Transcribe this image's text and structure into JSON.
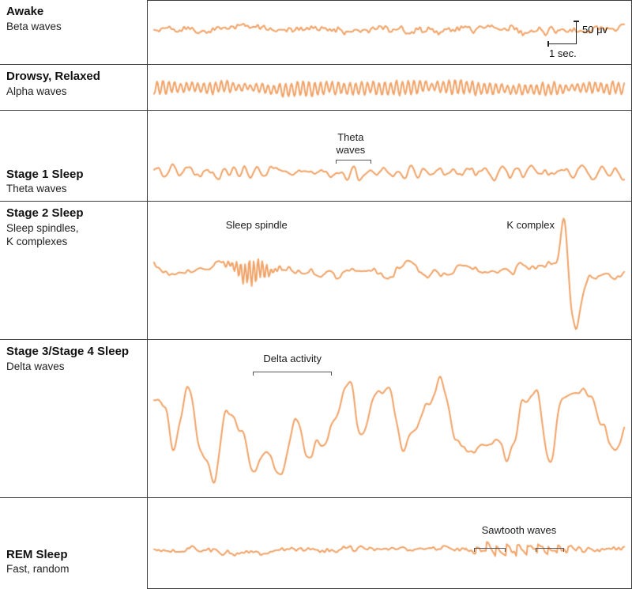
{
  "scale": {
    "amplitude": "50 μv",
    "time": "1 sec."
  },
  "colors": {
    "wave": "#f0a266",
    "line": "#3c3c3c",
    "text": "#1b1b1b"
  },
  "rows": [
    {
      "label": "Awake",
      "sublabel": "Beta waves",
      "wave": {
        "type": "beta",
        "description": "fast, low amplitude"
      },
      "annotations": [],
      "brackets": []
    },
    {
      "label": "Drowsy, Relaxed",
      "sublabel": "Alpha waves",
      "wave": {
        "type": "alpha",
        "description": "rhythmic, moderate amplitude"
      },
      "annotations": [],
      "brackets": []
    },
    {
      "label": "Stage 1 Sleep",
      "sublabel": "Theta waves",
      "wave": {
        "type": "theta",
        "description": "slower, mixed amplitude"
      },
      "annotations": [
        {
          "text": "Theta\nwaves",
          "x": 0.42,
          "y": 26
        }
      ],
      "brackets": [
        {
          "x": 0.389,
          "y": 62,
          "w": 0.073
        }
      ]
    },
    {
      "label": "Stage 2 Sleep",
      "sublabel": "Sleep spindles,\nK complexes",
      "wave": {
        "type": "stage2",
        "description": "mixed with sleep spindle burst and K complex spike"
      },
      "annotations": [
        {
          "text": "Sleep spindle",
          "x": 0.226,
          "y": 22
        },
        {
          "text": "K complex",
          "x": 0.791,
          "y": 22
        }
      ],
      "brackets": []
    },
    {
      "label": "Stage 3/Stage 4 Sleep",
      "sublabel": "Delta waves",
      "wave": {
        "type": "delta",
        "description": "large slow waves"
      },
      "annotations": [
        {
          "text": "Delta activity",
          "x": 0.3,
          "y": 16
        }
      ],
      "brackets": [
        {
          "x": 0.218,
          "y": 40,
          "w": 0.163
        }
      ]
    },
    {
      "label": "REM Sleep",
      "sublabel": "Fast, random",
      "wave": {
        "type": "rem",
        "description": "fast random with sawtooth waves"
      },
      "annotations": [
        {
          "text": "Sawtooth waves",
          "x": 0.767,
          "y": 33
        }
      ],
      "brackets": [
        {
          "x": 0.674,
          "y": 63,
          "w": 0.065
        },
        {
          "x": 0.801,
          "y": 63,
          "w": 0.059
        }
      ]
    }
  ]
}
